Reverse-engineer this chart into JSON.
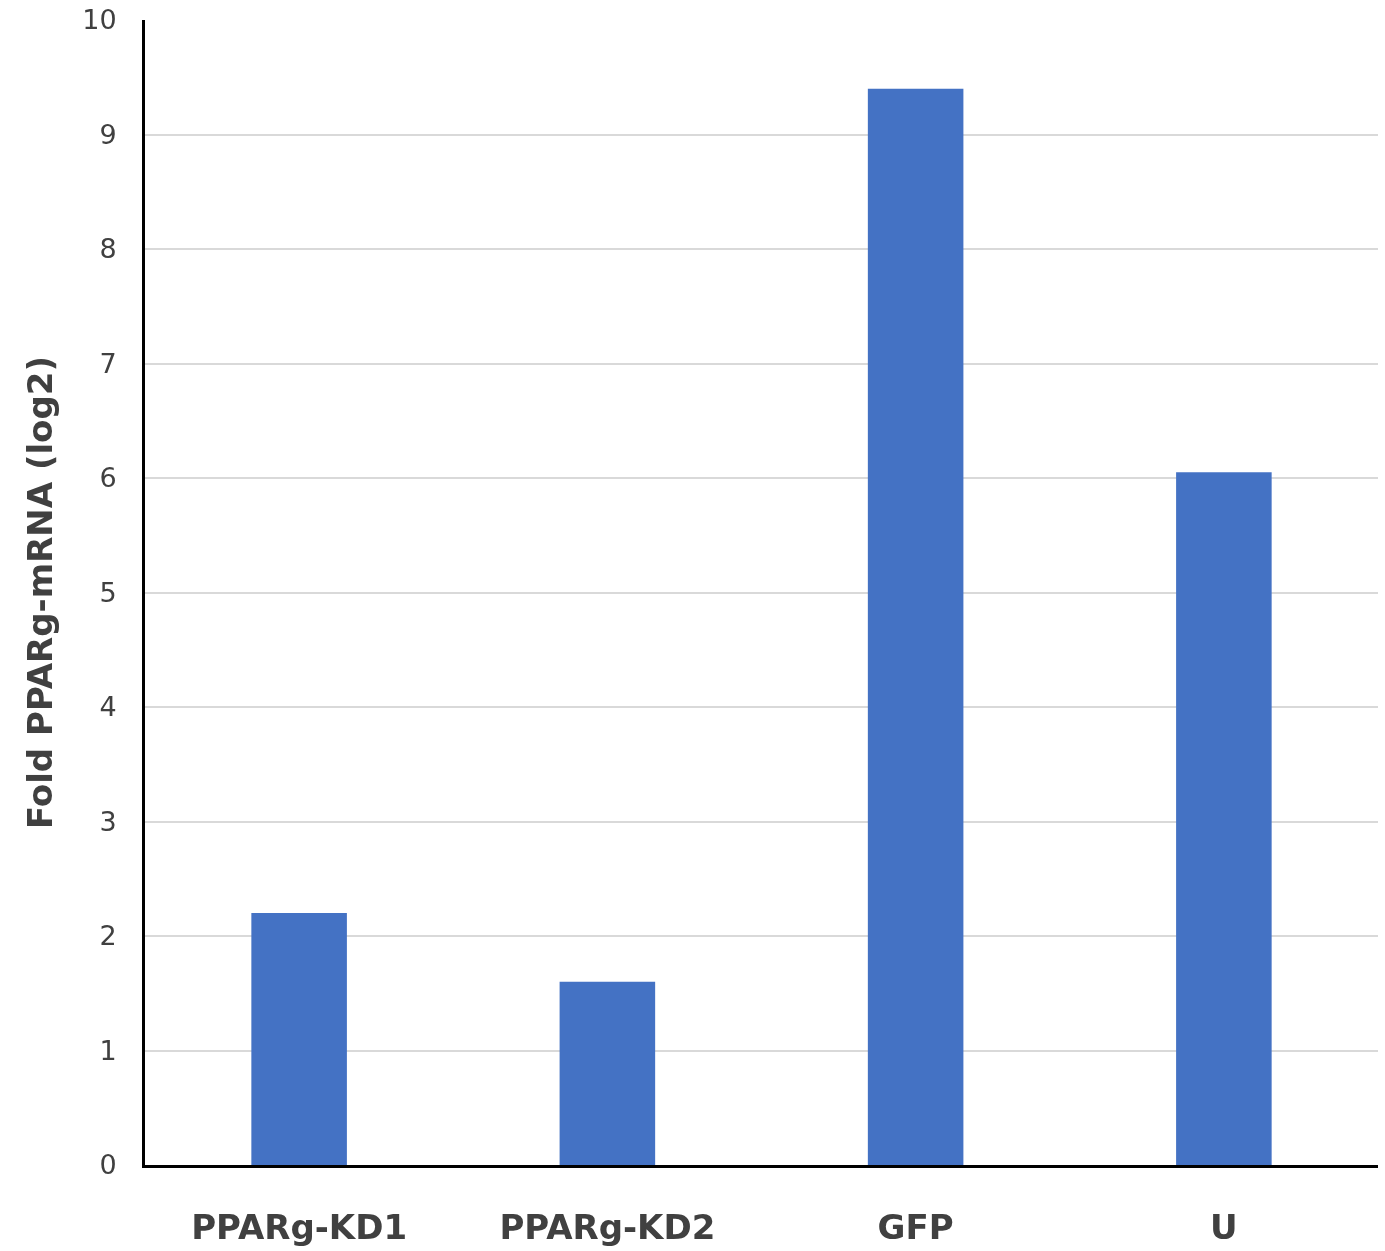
{
  "chart_data": {
    "type": "bar",
    "ylabel": "Fold PPARg-mRNA (log2)",
    "categories": [
      "PPARg-KD1",
      "PPARg-KD2",
      "GFP",
      "U"
    ],
    "values": [
      2.2,
      1.6,
      9.4,
      6.05
    ],
    "color": "#4472c4",
    "ylim": [
      0,
      10
    ],
    "yticks": [
      0,
      1,
      2,
      3,
      4,
      5,
      6,
      7,
      8,
      9,
      10
    ],
    "grid": "y",
    "legend": false
  }
}
